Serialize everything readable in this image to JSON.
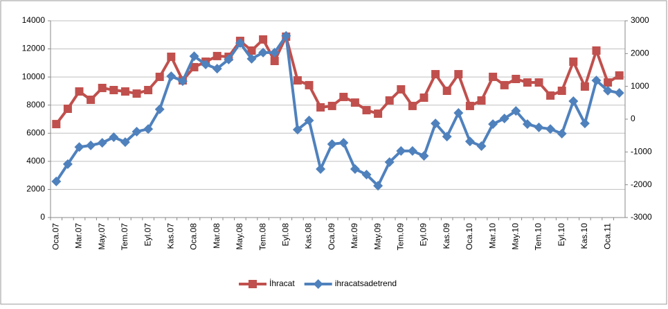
{
  "chart_data": {
    "type": "line",
    "categories": [
      "Oca.07",
      null,
      "Mar.07",
      null,
      "May.07",
      null,
      "Tem.07",
      null,
      "Eyl.07",
      null,
      "Kas.07",
      null,
      "Oca.08",
      null,
      "Mar.08",
      null,
      "May.08",
      null,
      "Tem.08",
      null,
      "Eyl.08",
      null,
      "Kas.08",
      null,
      "Oca.09",
      null,
      "Mar.09",
      null,
      "May.09",
      null,
      "Tem.09",
      null,
      "Eyl.09",
      null,
      "Kas.09",
      null,
      "Oca.10",
      null,
      "Mar.10",
      null,
      "May.10",
      null,
      "Tem.10",
      null,
      "Eyl.10",
      null,
      "Kas.10",
      null,
      "Oca.11",
      null
    ],
    "series": [
      {
        "name": "İhracat",
        "color": "#c0504d",
        "values": [
          6650,
          7740,
          8970,
          8380,
          9220,
          9070,
          8970,
          8820,
          9070,
          10010,
          11440,
          9760,
          10700,
          11090,
          11490,
          11440,
          12570,
          11880,
          12670,
          11140,
          12870,
          9760,
          9420,
          7840,
          7940,
          8580,
          8180,
          7640,
          7390,
          8330,
          9120,
          7940,
          8530,
          10200,
          9020,
          10200,
          7940,
          8330,
          10010,
          9420,
          9860,
          9610,
          9610,
          8680,
          9020,
          11090,
          9320,
          11880,
          9610,
          10110
        ]
      },
      {
        "name": "ihracatsadetrend",
        "color": "#4f81bd",
        "axis": "y2",
        "values": [
          -1900,
          -1370,
          -850,
          -800,
          -720,
          -550,
          -700,
          -380,
          -300,
          300,
          1310,
          1160,
          1920,
          1670,
          1540,
          1820,
          2320,
          1840,
          2030,
          2030,
          2540,
          -320,
          -40,
          -1520,
          -760,
          -720,
          -1520,
          -1690,
          -2030,
          -1310,
          -970,
          -970,
          -1120,
          -130,
          -530,
          190,
          -680,
          -820,
          -150,
          20,
          250,
          -150,
          -250,
          -300,
          -440,
          550,
          -130,
          1180,
          870,
          800
        ]
      }
    ],
    "ylim": [
      0,
      14000
    ],
    "yticks": [
      0,
      2000,
      4000,
      6000,
      8000,
      10000,
      12000,
      14000
    ],
    "y2lim": [
      -3000,
      3000
    ],
    "y2ticks": [
      -3000,
      -2000,
      -1000,
      0,
      1000,
      2000,
      3000
    ],
    "grid": true,
    "legend": "bottom"
  }
}
